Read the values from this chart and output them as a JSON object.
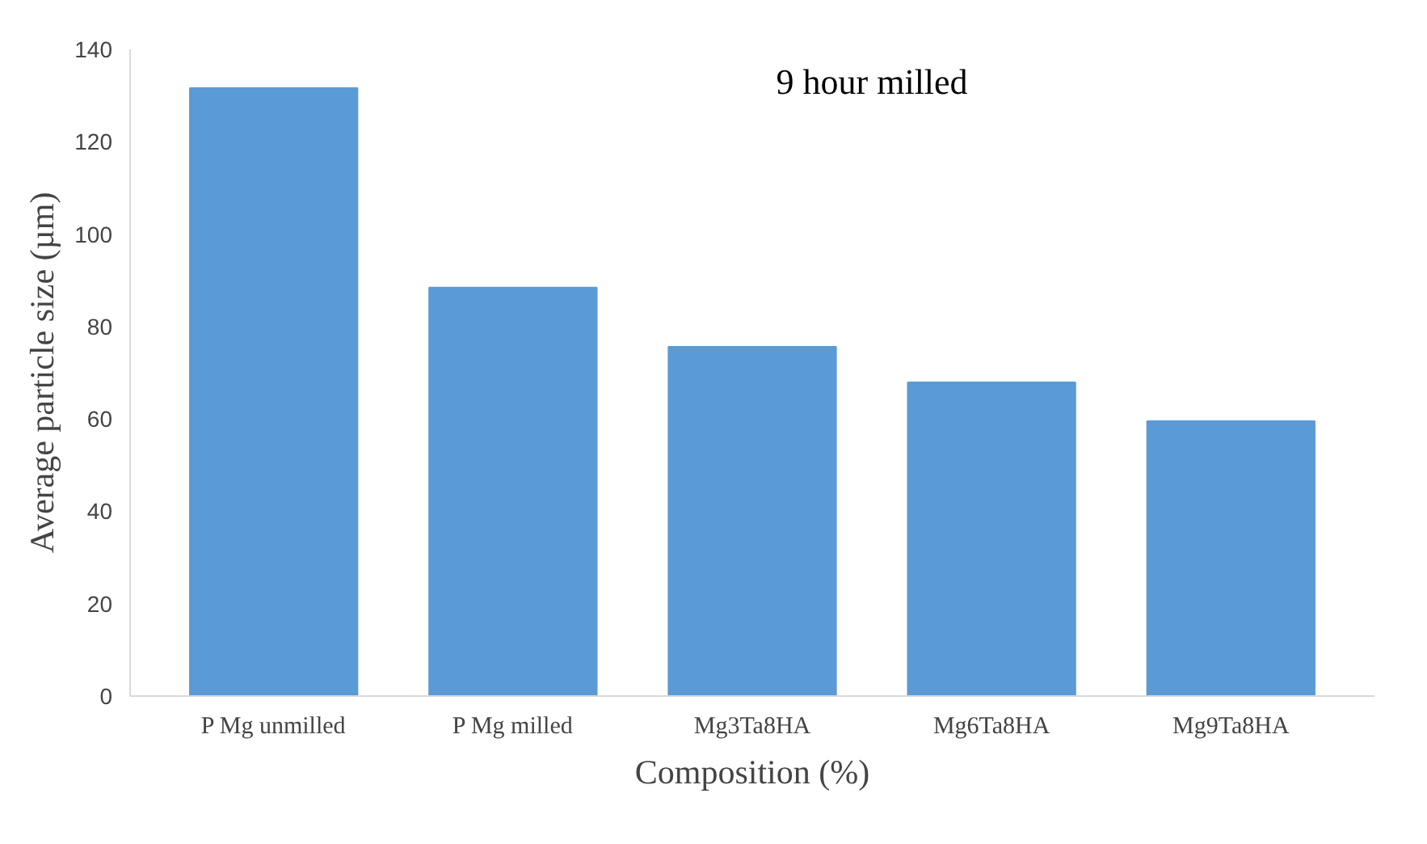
{
  "chart_data": {
    "type": "bar",
    "xlabel": "Composition (%)",
    "ylabel": "Average particle size (µm)",
    "categories": [
      "P Mg unmilled",
      "P Mg milled",
      "Mg3Ta8HA",
      "Mg6Ta8HA",
      "Mg9Ta8HA"
    ],
    "values": [
      131.6,
      88.4,
      75.6,
      67.9,
      59.5
    ],
    "color": "#5b9bd5",
    "ylim": [
      0,
      140
    ],
    "yticks": [
      0,
      20,
      40,
      60,
      80,
      100,
      120,
      140
    ],
    "grid": false,
    "annotations": [
      "9 hour milled"
    ]
  }
}
